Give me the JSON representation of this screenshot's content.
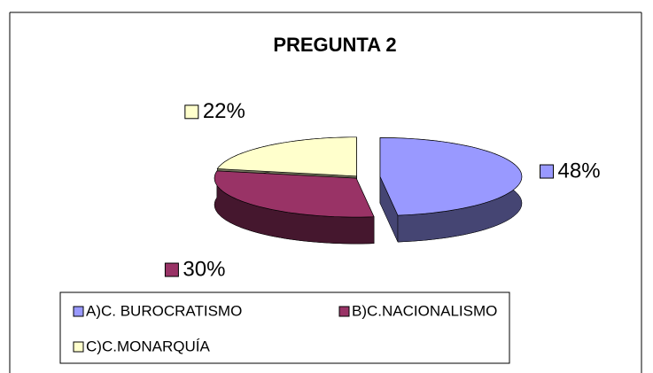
{
  "chart_data": {
    "type": "pie",
    "title": "PREGUNTA 2",
    "categories": [
      "A)C. BUROCRATISMO",
      "B)C.NACIONALISMO",
      "C)C.MONARQUÍA"
    ],
    "values": [
      48,
      30,
      22
    ],
    "value_labels": [
      "48%",
      "30%",
      "22%"
    ],
    "colors": [
      "#9999ff",
      "#993366",
      "#ffffcc"
    ]
  }
}
